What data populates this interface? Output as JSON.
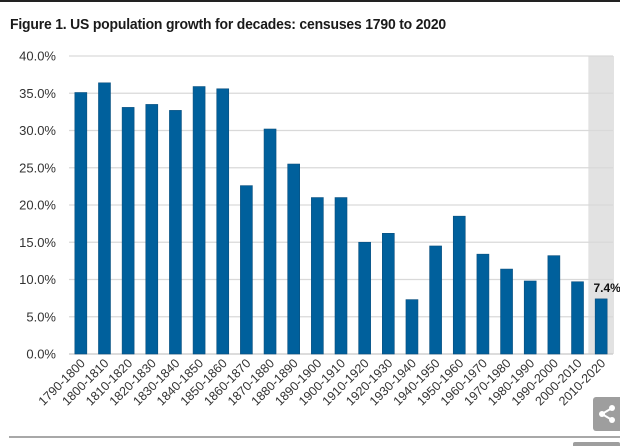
{
  "figure": {
    "title": "Figure 1. US population growth for decades: censuses 1790 to 2020",
    "share_icon": "share-icon"
  },
  "colors": {
    "bar": "#00609c",
    "highlight_band": "#e2e2e2",
    "gridline": "#d9d9d9",
    "text": "#333333"
  },
  "chart_data": {
    "type": "bar",
    "title": "Figure 1. US population growth for decades: censuses 1790 to 2020",
    "xlabel": "",
    "ylabel": "",
    "ylim": [
      0,
      40
    ],
    "yticks": [
      0,
      5,
      10,
      15,
      20,
      25,
      30,
      35,
      40
    ],
    "ytick_labels": [
      "0.0%",
      "5.0%",
      "10.0%",
      "15.0%",
      "20.0%",
      "25.0%",
      "30.0%",
      "35.0%",
      "40.0%"
    ],
    "grid": true,
    "legend": "none",
    "categories": [
      "1790-1800",
      "1800-1810",
      "1810-1820",
      "1820-1830",
      "1830-1840",
      "1840-1850",
      "1850-1860",
      "1860-1870",
      "1870-1880",
      "1880-1890",
      "1890-1900",
      "1900-1910",
      "1910-1920",
      "1920-1930",
      "1930-1940",
      "1940-1950",
      "1950-1960",
      "1960-1970",
      "1970-1980",
      "1980-1990",
      "1990-2000",
      "2000-2010",
      "2010-2020"
    ],
    "values": [
      35.1,
      36.4,
      33.1,
      33.5,
      32.7,
      35.9,
      35.6,
      22.6,
      30.2,
      25.5,
      21.0,
      21.0,
      15.0,
      16.2,
      7.3,
      14.5,
      18.5,
      13.4,
      11.4,
      9.8,
      13.2,
      9.7,
      7.4
    ],
    "highlighted_category": "2010-2020",
    "annotations": [
      {
        "category": "2010-2020",
        "text": "7.4%"
      }
    ]
  }
}
